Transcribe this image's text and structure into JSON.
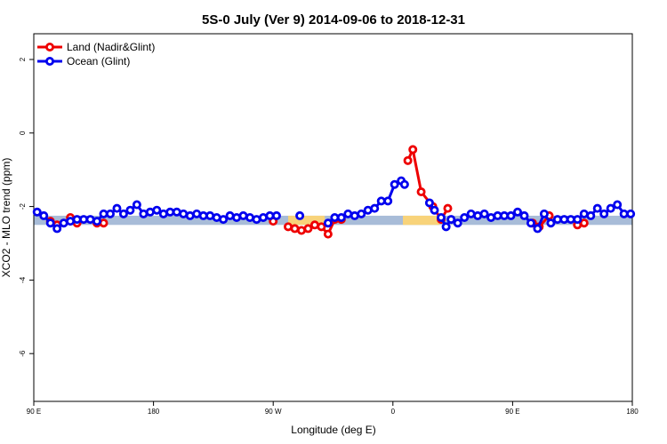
{
  "chart_data": {
    "type": "line",
    "title": "5S-0 July (Ver 9)   2014-09-06 to 2018-12-31",
    "xlabel": "Longitude (deg E)",
    "ylabel": "XCO2 - MLO trend (ppm)",
    "xlim": [
      0,
      360
    ],
    "ylim": [
      -7.3,
      2.7
    ],
    "x_ticks": [
      {
        "value": 0,
        "label": "90 E"
      },
      {
        "value": 72,
        "label": "180"
      },
      {
        "value": 144,
        "label": "90 W"
      },
      {
        "value": 216,
        "label": "0"
      },
      {
        "value": 288,
        "label": "90 E"
      },
      {
        "value": 360,
        "label": "180"
      }
    ],
    "y_ticks": [
      {
        "value": 2,
        "label": "2"
      },
      {
        "value": 0,
        "label": "0"
      },
      {
        "value": -2,
        "label": "-2"
      },
      {
        "value": -4,
        "label": "-4"
      },
      {
        "value": -6,
        "label": "-6"
      }
    ],
    "legend": [
      {
        "name": "Land (Nadir&Glint)",
        "color": "#ee0000"
      },
      {
        "name": "Ocean (Glint)",
        "color": "#0000ee"
      }
    ],
    "legend_position": "top-left",
    "band": {
      "y_min": -2.5,
      "y_max": -2.25,
      "color": "#a8bcd8"
    },
    "land_highlights": [
      {
        "x_start": 153,
        "x_end": 175,
        "color": "#f8d37a"
      },
      {
        "x_start": 222,
        "x_end": 244,
        "color": "#f8d37a"
      }
    ],
    "series": [
      {
        "name": "Land (Nadir&Glint)",
        "color": "#ee0000",
        "segments": [
          [
            [
              10,
              -2.4
            ],
            [
              14,
              -2.5
            ]
          ],
          [
            [
              22,
              -2.3
            ],
            [
              26,
              -2.45
            ]
          ],
          [
            [
              38,
              -2.45
            ],
            [
              42,
              -2.45
            ]
          ],
          [
            [
              144,
              -2.4
            ]
          ],
          [
            [
              153,
              -2.55
            ],
            [
              157,
              -2.6
            ],
            [
              161,
              -2.65
            ],
            [
              165,
              -2.6
            ],
            [
              169,
              -2.5
            ],
            [
              173,
              -2.55
            ],
            [
              177,
              -2.75
            ],
            [
              181,
              -2.35
            ],
            [
              185,
              -2.35
            ]
          ],
          [
            [
              225,
              -0.75
            ],
            [
              228,
              -0.45
            ],
            [
              233,
              -1.6
            ],
            [
              240,
              -2.0
            ],
            [
              245,
              -2.35
            ],
            [
              249,
              -2.05
            ]
          ],
          [
            [
              300,
              -2.45
            ],
            [
              304,
              -2.55
            ],
            [
              310,
              -2.25
            ]
          ],
          [
            [
              327,
              -2.5
            ],
            [
              331,
              -2.45
            ]
          ]
        ]
      },
      {
        "name": "Ocean (Glint)",
        "color": "#0000ee",
        "segments": [
          [
            [
              2,
              -2.15
            ],
            [
              6,
              -2.25
            ],
            [
              10,
              -2.45
            ],
            [
              14,
              -2.6
            ],
            [
              18,
              -2.45
            ],
            [
              22,
              -2.4
            ],
            [
              26,
              -2.35
            ],
            [
              30,
              -2.35
            ],
            [
              34,
              -2.35
            ],
            [
              38,
              -2.4
            ],
            [
              42,
              -2.2
            ],
            [
              46,
              -2.2
            ],
            [
              50,
              -2.05
            ],
            [
              54,
              -2.2
            ],
            [
              58,
              -2.1
            ],
            [
              62,
              -1.95
            ],
            [
              66,
              -2.2
            ],
            [
              70,
              -2.15
            ],
            [
              74,
              -2.1
            ],
            [
              78,
              -2.2
            ],
            [
              82,
              -2.15
            ],
            [
              86,
              -2.15
            ],
            [
              90,
              -2.2
            ],
            [
              94,
              -2.25
            ],
            [
              98,
              -2.2
            ],
            [
              102,
              -2.25
            ],
            [
              106,
              -2.25
            ],
            [
              110,
              -2.3
            ],
            [
              114,
              -2.35
            ],
            [
              118,
              -2.25
            ],
            [
              122,
              -2.3
            ],
            [
              126,
              -2.25
            ],
            [
              130,
              -2.3
            ],
            [
              134,
              -2.35
            ],
            [
              138,
              -2.3
            ],
            [
              142,
              -2.25
            ],
            [
              146,
              -2.25
            ]
          ],
          [
            [
              160,
              -2.25
            ]
          ],
          [
            [
              177,
              -2.45
            ],
            [
              181,
              -2.3
            ],
            [
              185,
              -2.3
            ],
            [
              189,
              -2.2
            ],
            [
              193,
              -2.25
            ],
            [
              197,
              -2.2
            ],
            [
              201,
              -2.1
            ],
            [
              205,
              -2.05
            ],
            [
              209,
              -1.85
            ],
            [
              213,
              -1.85
            ],
            [
              217,
              -1.4
            ],
            [
              221,
              -1.3
            ],
            [
              223,
              -1.4
            ]
          ],
          [
            [
              238,
              -1.9
            ],
            [
              241,
              -2.1
            ]
          ],
          [
            [
              245,
              -2.3
            ],
            [
              248,
              -2.55
            ],
            [
              251,
              -2.35
            ],
            [
              255,
              -2.45
            ],
            [
              259,
              -2.3
            ],
            [
              263,
              -2.2
            ],
            [
              267,
              -2.25
            ],
            [
              271,
              -2.2
            ],
            [
              275,
              -2.3
            ],
            [
              279,
              -2.25
            ],
            [
              283,
              -2.25
            ],
            [
              287,
              -2.25
            ],
            [
              291,
              -2.15
            ],
            [
              295,
              -2.25
            ],
            [
              299,
              -2.45
            ],
            [
              303,
              -2.6
            ],
            [
              307,
              -2.2
            ],
            [
              311,
              -2.45
            ],
            [
              315,
              -2.35
            ],
            [
              319,
              -2.35
            ],
            [
              323,
              -2.35
            ],
            [
              327,
              -2.35
            ],
            [
              331,
              -2.2
            ],
            [
              335,
              -2.25
            ],
            [
              339,
              -2.05
            ],
            [
              343,
              -2.2
            ],
            [
              347,
              -2.05
            ],
            [
              351,
              -1.95
            ],
            [
              355,
              -2.2
            ],
            [
              359,
              -2.2
            ]
          ]
        ]
      }
    ]
  }
}
